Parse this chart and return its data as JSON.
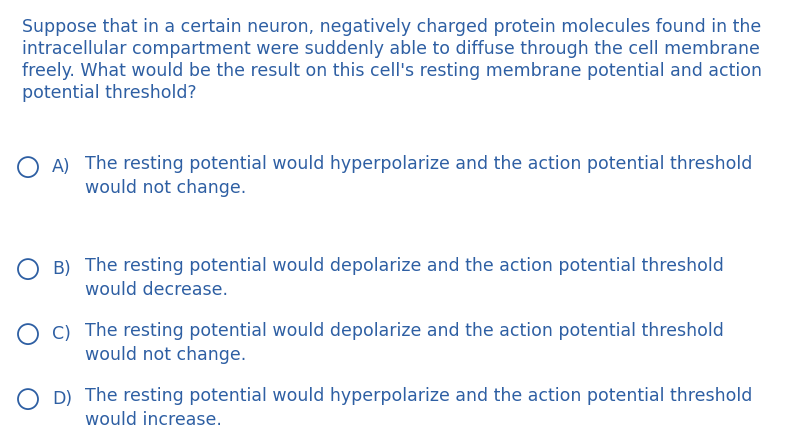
{
  "background_color": "#ffffff",
  "text_color": "#2e5fa3",
  "font_size_question": 12.5,
  "font_size_options": 12.5,
  "question_lines": [
    "Suppose that in a certain neuron, negatively charged protein molecules found in the",
    "intracellular compartment were suddenly able to diffuse through the cell membrane",
    "freely. What would be the result on this cell's resting membrane potential and action",
    "potential threshold?"
  ],
  "options": [
    {
      "label": "A)",
      "line1": "The resting potential would hyperpolarize and the action potential threshold",
      "line2": "would not change."
    },
    {
      "label": "B)",
      "line1": "The resting potential would depolarize and the action potential threshold",
      "line2": "would decrease."
    },
    {
      "label": "C)",
      "line1": "The resting potential would depolarize and the action potential threshold",
      "line2": "would not change."
    },
    {
      "label": "D)",
      "line1": "The resting potential would hyperpolarize and the action potential threshold",
      "line2": "would increase."
    }
  ],
  "figsize": [
    8.03,
    4.46
  ],
  "dpi": 100
}
